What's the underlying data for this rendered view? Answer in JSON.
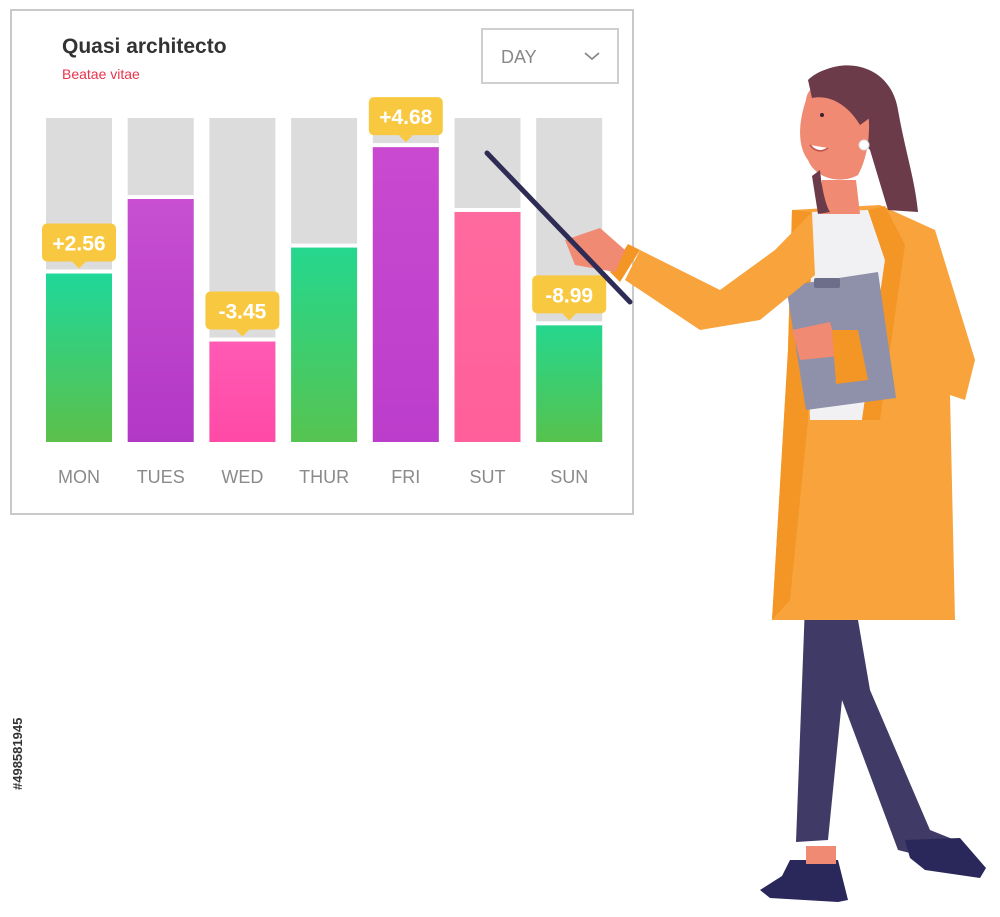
{
  "panel": {
    "title": "Quasi architecto",
    "subtitle": "Beatae vitae",
    "period_select": {
      "selected": "DAY"
    }
  },
  "chart_data": {
    "type": "bar",
    "categories": [
      "MON",
      "TUES",
      "WED",
      "THUR",
      "FRI",
      "SUT",
      "SUN"
    ],
    "values": [
      52,
      75,
      31,
      60,
      91,
      71,
      36
    ],
    "ylim": [
      0,
      100
    ],
    "data_labels": [
      "+2.56",
      "",
      "-3.45",
      "",
      "+4.68",
      "",
      "-8.99"
    ],
    "bar_gradients": [
      [
        "#1fd89a",
        "#5cc04a"
      ],
      [
        "#c74fd0",
        "#b238c6"
      ],
      [
        "#ff5ab4",
        "#ff4aa6"
      ],
      [
        "#25d78e",
        "#56c451"
      ],
      [
        "#c94ad0",
        "#bb3dcb"
      ],
      [
        "#ff6a9e",
        "#ff5f9a"
      ],
      [
        "#25d78e",
        "#57c24d"
      ]
    ],
    "track_color": "#dcdcdc",
    "label_color": "#f8c940",
    "grid": false,
    "legend": "none"
  },
  "side_text": "#498581945",
  "colors": {
    "coat": "#f8a33b",
    "trousers": "#3f3b66",
    "hair": "#6b3b4a",
    "skin": "#f08a72",
    "clipboard": "#8f90aa",
    "pointer": "#2e2c55"
  }
}
